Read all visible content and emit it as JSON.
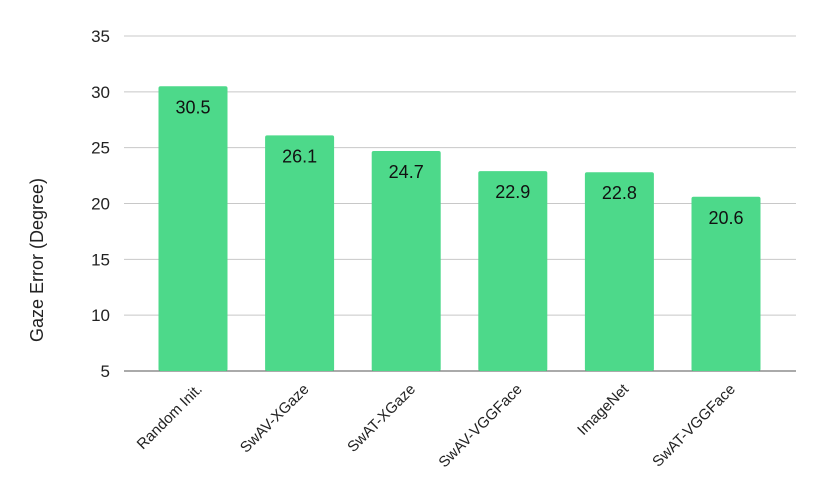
{
  "chart_data": {
    "type": "bar",
    "title": "",
    "xlabel": "",
    "ylabel": "Gaze Error (Degree)",
    "categories": [
      "Random Init.",
      "SwAV-XGaze",
      "SwAT-XGaze",
      "SwAV-VGGFace",
      "ImageNet",
      "SwAT-VGGFace"
    ],
    "values": [
      30.5,
      26.1,
      24.7,
      22.9,
      22.8,
      20.6
    ],
    "value_labels": [
      "30.5",
      "26.1",
      "24.7",
      "22.9",
      "22.8",
      "20.6"
    ],
    "ylim": [
      5,
      35
    ],
    "yticks": [
      5,
      10,
      15,
      20,
      25,
      30,
      35
    ],
    "grid": true,
    "bar_color": "#4dd98a"
  }
}
